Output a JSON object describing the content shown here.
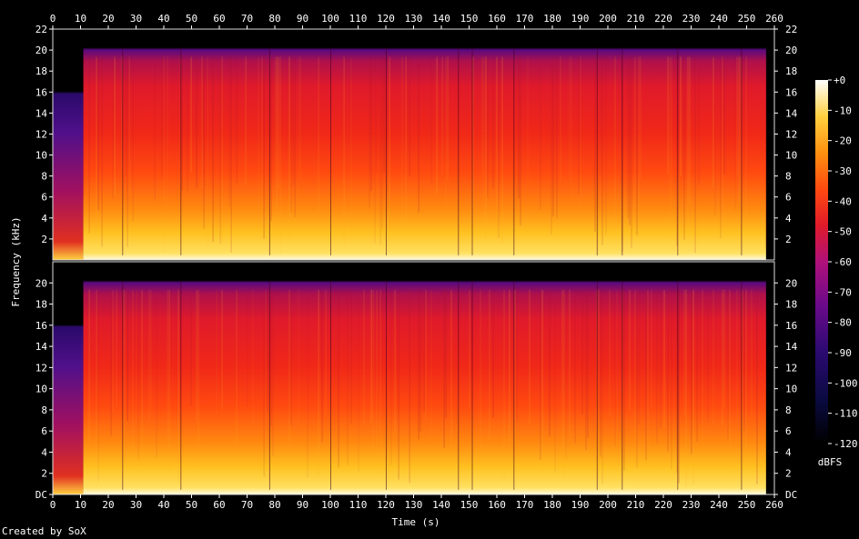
{
  "chart_data": {
    "type": "heatmap",
    "title": "",
    "xlabel": "Time (s)",
    "ylabel": "Frequency (kHz)",
    "xlim": [
      0,
      260
    ],
    "ylim": [
      0,
      22
    ],
    "x_ticks": [
      "0",
      "10",
      "20",
      "30",
      "40",
      "50",
      "60",
      "70",
      "80",
      "90",
      "100",
      "110",
      "120",
      "130",
      "140",
      "150",
      "160",
      "170",
      "180",
      "190",
      "200",
      "210",
      "220",
      "230",
      "240",
      "250",
      "260"
    ],
    "y_ticks_top": [
      "2",
      "4",
      "6",
      "8",
      "10",
      "12",
      "14",
      "16",
      "18",
      "20",
      "22"
    ],
    "y_ticks_bottom": [
      "DC",
      "2",
      "4",
      "6",
      "8",
      "10",
      "12",
      "14",
      "16",
      "18",
      "20"
    ],
    "channels": 2,
    "colorbar": {
      "label": "dBFS",
      "ticks": [
        "+0",
        "-10",
        "-20",
        "-30",
        "-40",
        "-50",
        "-60",
        "-70",
        "-80",
        "-90",
        "-100",
        "-110",
        "-120"
      ],
      "range": [
        -120,
        0
      ]
    }
  },
  "footer": "Created by SoX"
}
